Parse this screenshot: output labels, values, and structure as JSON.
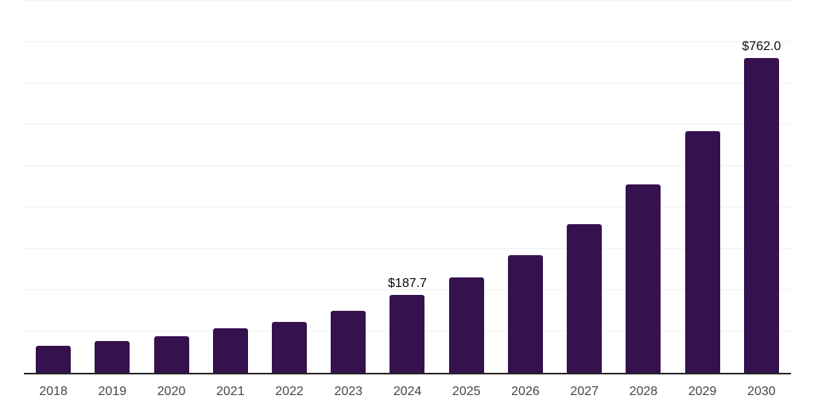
{
  "chart_data": {
    "type": "bar",
    "title": "",
    "xlabel": "",
    "ylabel": "",
    "categories": [
      "2018",
      "2019",
      "2020",
      "2021",
      "2022",
      "2023",
      "2024",
      "2025",
      "2026",
      "2027",
      "2028",
      "2029",
      "2030"
    ],
    "values": [
      65,
      77,
      89,
      107,
      124,
      150,
      187.7,
      231,
      285,
      359,
      455,
      585,
      762
    ],
    "point_labels": [
      "",
      "",
      "",
      "",
      "",
      "",
      "$187.7",
      "",
      "",
      "",
      "",
      "",
      "$762.0"
    ],
    "ylim": [
      0,
      900
    ],
    "gridline_step": 100,
    "grid": "horizontal",
    "legend": "none",
    "colors": {
      "bar": "#35114d",
      "axis_line": "#262626",
      "gridline": "#f1f1f1",
      "tick_label": "#474747",
      "value_label": "#0c0c0c",
      "background": "#ffffff"
    }
  }
}
